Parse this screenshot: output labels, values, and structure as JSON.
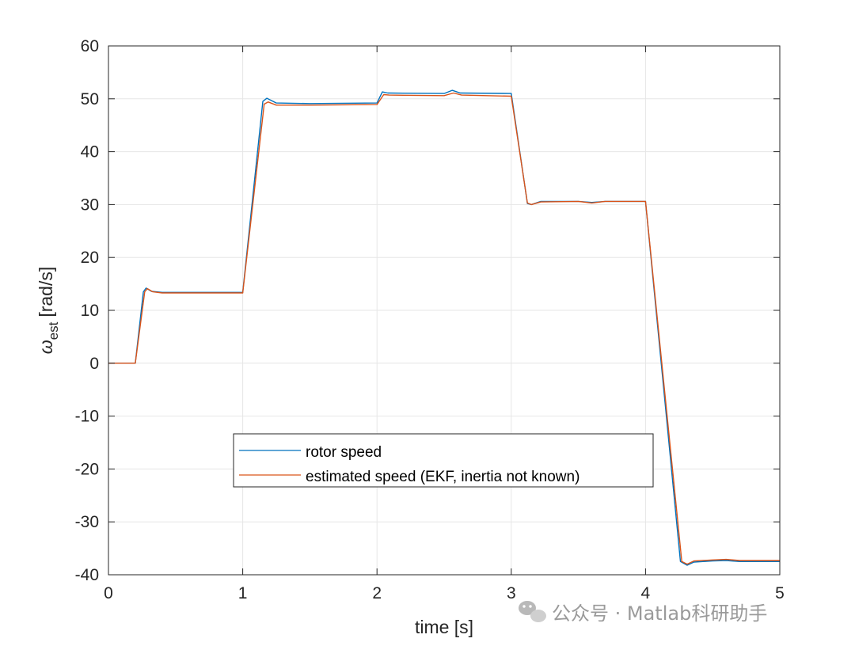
{
  "chart_data": {
    "type": "line",
    "xlabel": "time [s]",
    "ylabel_symbol": "ω",
    "ylabel_subscript": "est",
    "ylabel_unit": "[rad/s]",
    "xlim": [
      0,
      5
    ],
    "ylim": [
      -40,
      60
    ],
    "xticks": [
      "0",
      "1",
      "2",
      "3",
      "4",
      "5"
    ],
    "yticks": [
      "60",
      "50",
      "40",
      "30",
      "20",
      "10",
      "0",
      "-10",
      "-20",
      "-30",
      "-40"
    ],
    "grid": true,
    "legend_position": "lower-center",
    "series": [
      {
        "name": "rotor speed",
        "color": "#0072BD",
        "points": [
          [
            0,
            0
          ],
          [
            0.2,
            0
          ],
          [
            0.26,
            13.5
          ],
          [
            0.28,
            14.2
          ],
          [
            0.32,
            13.6
          ],
          [
            0.4,
            13.4
          ],
          [
            1.0,
            13.4
          ],
          [
            1.15,
            49.5
          ],
          [
            1.18,
            50.1
          ],
          [
            1.25,
            49.2
          ],
          [
            1.5,
            49.1
          ],
          [
            2.0,
            49.2
          ],
          [
            2.04,
            51.3
          ],
          [
            2.08,
            51.1
          ],
          [
            2.5,
            51.0
          ],
          [
            2.56,
            51.6
          ],
          [
            2.62,
            51.1
          ],
          [
            3.0,
            51.0
          ],
          [
            3.12,
            30.2
          ],
          [
            3.15,
            30.0
          ],
          [
            3.22,
            30.6
          ],
          [
            3.5,
            30.6
          ],
          [
            3.6,
            30.4
          ],
          [
            3.7,
            30.6
          ],
          [
            4.0,
            30.6
          ],
          [
            4.26,
            -37.5
          ],
          [
            4.31,
            -38.2
          ],
          [
            4.36,
            -37.6
          ],
          [
            4.5,
            -37.4
          ],
          [
            4.6,
            -37.3
          ],
          [
            4.7,
            -37.5
          ],
          [
            5.0,
            -37.5
          ]
        ]
      },
      {
        "name": "estimated speed (EKF, inertia not known)",
        "color": "#D95319",
        "points": [
          [
            0,
            0
          ],
          [
            0.2,
            0
          ],
          [
            0.27,
            13.5
          ],
          [
            0.29,
            14.1
          ],
          [
            0.33,
            13.5
          ],
          [
            0.4,
            13.3
          ],
          [
            1.0,
            13.3
          ],
          [
            1.16,
            49.0
          ],
          [
            1.19,
            49.4
          ],
          [
            1.25,
            48.8
          ],
          [
            1.5,
            48.8
          ],
          [
            2.0,
            48.9
          ],
          [
            2.05,
            50.8
          ],
          [
            2.09,
            50.7
          ],
          [
            2.5,
            50.6
          ],
          [
            2.57,
            51.1
          ],
          [
            2.63,
            50.7
          ],
          [
            3.0,
            50.5
          ],
          [
            3.12,
            30.3
          ],
          [
            3.15,
            30.0
          ],
          [
            3.22,
            30.5
          ],
          [
            3.5,
            30.6
          ],
          [
            3.6,
            30.3
          ],
          [
            3.7,
            30.6
          ],
          [
            4.0,
            30.6
          ],
          [
            4.27,
            -37.5
          ],
          [
            4.31,
            -38.0
          ],
          [
            4.36,
            -37.4
          ],
          [
            4.5,
            -37.2
          ],
          [
            4.6,
            -37.1
          ],
          [
            4.7,
            -37.3
          ],
          [
            5.0,
            -37.3
          ]
        ]
      }
    ]
  },
  "watermark": {
    "text": "公众号 · Matlab科研助手",
    "icon": "wechat-icon"
  }
}
